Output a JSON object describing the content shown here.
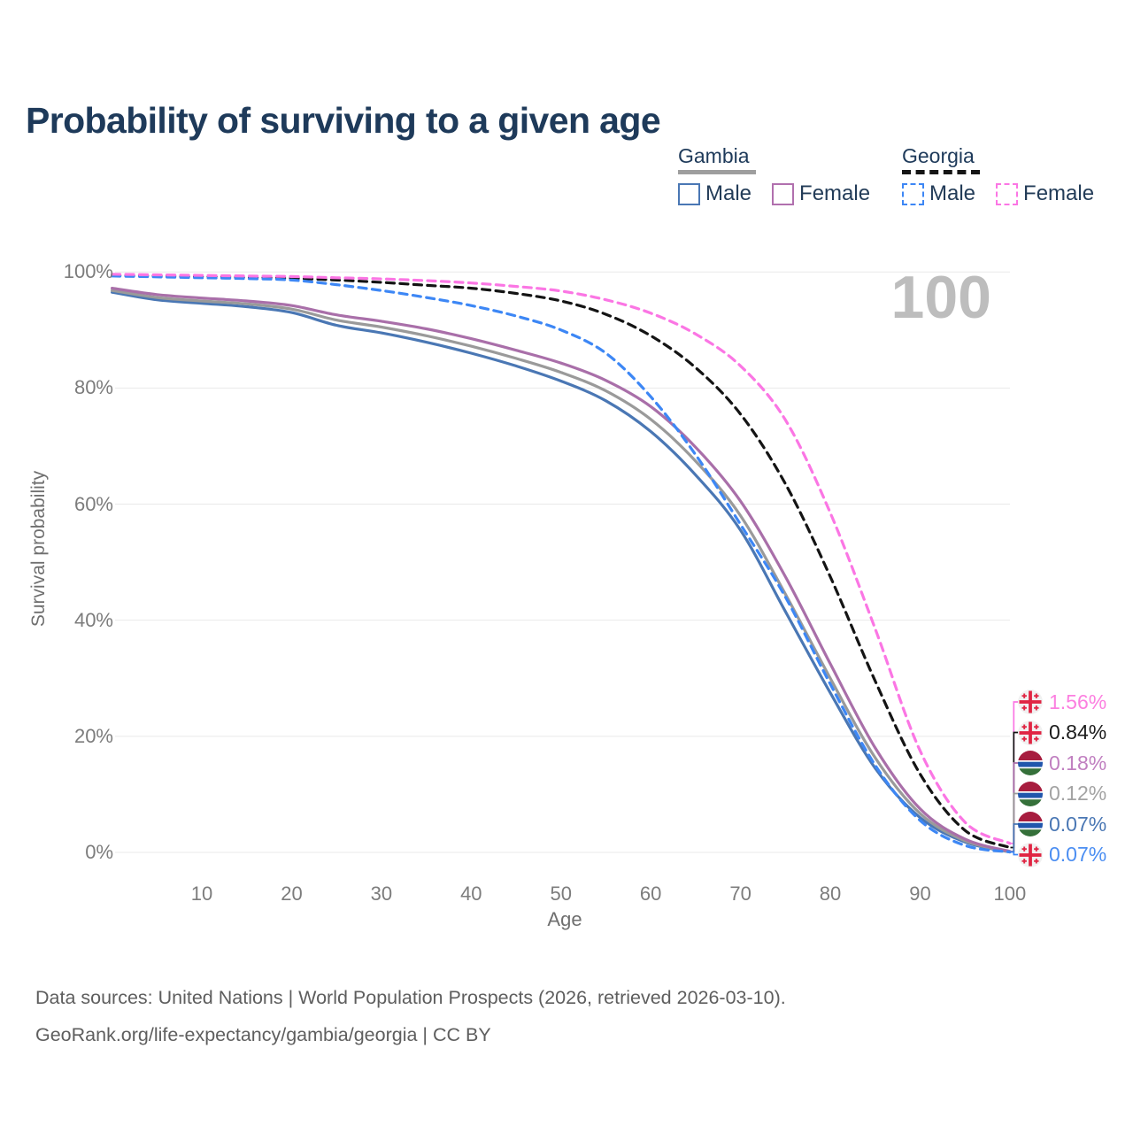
{
  "header": {
    "title": "Probability of surviving to a given age"
  },
  "legend": {
    "groups": [
      {
        "name": "Gambia",
        "underline_style": "solid",
        "underline_color": "#9e9e9e",
        "items": [
          {
            "label": "Male",
            "color": "#4a77b4",
            "dashed": false
          },
          {
            "label": "Female",
            "color": "#b170ae",
            "dashed": false
          }
        ]
      },
      {
        "name": "Georgia",
        "underline_style": "dashed",
        "underline_color": "#151515",
        "items": [
          {
            "label": "Male",
            "color": "#3d87f5",
            "dashed": true
          },
          {
            "label": "Female",
            "color": "#fb76e4",
            "dashed": true
          }
        ]
      }
    ]
  },
  "watermark": "100",
  "axes": {
    "y_title": "Survival probability",
    "x_title": "Age",
    "y_ticks": [
      {
        "label": "0%",
        "percent": 0
      },
      {
        "label": "20%",
        "percent": 20
      },
      {
        "label": "40%",
        "percent": 40
      },
      {
        "label": "60%",
        "percent": 60
      },
      {
        "label": "80%",
        "percent": 80
      },
      {
        "label": "100%",
        "percent": 100
      }
    ],
    "x_ticks": [
      {
        "label": "10",
        "age": 10
      },
      {
        "label": "20",
        "age": 20
      },
      {
        "label": "30",
        "age": 30
      },
      {
        "label": "40",
        "age": 40
      },
      {
        "label": "50",
        "age": 50
      },
      {
        "label": "60",
        "age": 60
      },
      {
        "label": "70",
        "age": 70
      },
      {
        "label": "80",
        "age": 80
      },
      {
        "label": "90",
        "age": 90
      },
      {
        "label": "100",
        "age": 100
      }
    ]
  },
  "end_labels": [
    {
      "flag": "georgia",
      "value": "1.56%",
      "text_color": "#fc7fe0",
      "line_color": "#fb76e4",
      "end_percent": 1.56
    },
    {
      "flag": "georgia",
      "value": "0.84%",
      "text_color": "#1c1c1c",
      "line_color": "#141414",
      "end_percent": 0.84
    },
    {
      "flag": "gambia",
      "value": "0.18%",
      "text_color": "#c07fc0",
      "line_color": "#a96fa9",
      "end_percent": 0.18
    },
    {
      "flag": "gambia",
      "value": "0.12%",
      "text_color": "#a3a3a3",
      "line_color": "#9a9a9a",
      "end_percent": 0.12
    },
    {
      "flag": "gambia",
      "value": "0.07%",
      "text_color": "#4a77b4",
      "line_color": "#4a77b4",
      "end_percent": 0.07
    },
    {
      "flag": "georgia",
      "value": "0.07%",
      "text_color": "#4b8ef2",
      "line_color": "#3d87f5",
      "end_percent": 0.07
    }
  ],
  "footer": {
    "line1": "Data sources: United Nations | World Population Prospects (2026, retrieved 2026-03-10).",
    "line2": "GeoRank.org/life-expectancy/gambia/georgia | CC BY"
  },
  "chart_data": {
    "type": "line",
    "title": "Probability of surviving to a given age",
    "xlabel": "Age",
    "ylabel": "Survival probability",
    "x_range": [
      0,
      100
    ],
    "y_range_percent": [
      0,
      100
    ],
    "grid": "horizontal",
    "legend_position": "top-right",
    "current_age_indicator": 100,
    "x": [
      0,
      5,
      10,
      15,
      20,
      25,
      30,
      35,
      40,
      45,
      50,
      55,
      60,
      65,
      70,
      75,
      80,
      85,
      90,
      95,
      100
    ],
    "series": [
      {
        "name": "Gambia Male",
        "country": "Gambia",
        "sex": "Male",
        "color": "#4a77b4",
        "dash": false,
        "values": [
          96.5,
          95.2,
          94.6,
          94.0,
          93.0,
          90.8,
          89.5,
          87.9,
          86.0,
          83.8,
          81.2,
          77.8,
          72.5,
          65.0,
          55.5,
          41.5,
          27.5,
          14.5,
          6.0,
          1.8,
          0.07
        ]
      },
      {
        "name": "Gambia",
        "country": "Gambia",
        "sex": "Both sexes",
        "color": "#9a9a9a",
        "dash": false,
        "values": [
          96.8,
          95.6,
          95.0,
          94.5,
          93.6,
          91.7,
          90.5,
          89.0,
          87.2,
          85.1,
          82.7,
          79.5,
          74.6,
          67.4,
          58.0,
          44.5,
          30.0,
          16.3,
          6.7,
          2.0,
          0.12
        ]
      },
      {
        "name": "Gambia Female",
        "country": "Gambia",
        "sex": "Female",
        "color": "#a96fa9",
        "dash": false,
        "values": [
          97.2,
          96.1,
          95.5,
          95.0,
          94.2,
          92.6,
          91.5,
          90.2,
          88.5,
          86.5,
          84.3,
          81.3,
          76.8,
          69.8,
          60.5,
          47.5,
          32.5,
          18.0,
          7.5,
          2.3,
          0.18
        ]
      },
      {
        "name": "Georgia",
        "country": "Georgia",
        "sex": "Both sexes",
        "color": "#141414",
        "dash": true,
        "values": [
          99.4,
          99.3,
          99.2,
          99.05,
          98.9,
          98.6,
          98.2,
          97.7,
          97.2,
          96.3,
          95.0,
          92.7,
          89.0,
          83.5,
          75.5,
          63.5,
          47.5,
          29.5,
          13.5,
          3.8,
          0.84
        ]
      },
      {
        "name": "Georgia Male",
        "country": "Georgia",
        "sex": "Male",
        "color": "#3d87f5",
        "dash": true,
        "values": [
          99.3,
          99.15,
          99.0,
          98.85,
          98.6,
          97.8,
          96.8,
          95.6,
          94.2,
          92.4,
          90.0,
          86.0,
          78.5,
          68.5,
          56.5,
          44.0,
          29.0,
          15.0,
          5.5,
          1.2,
          0.07
        ]
      },
      {
        "name": "Georgia Female",
        "country": "Georgia",
        "sex": "Female",
        "color": "#fb76e4",
        "dash": true,
        "values": [
          99.6,
          99.5,
          99.4,
          99.3,
          99.2,
          99.0,
          98.8,
          98.5,
          98.1,
          97.5,
          96.7,
          95.2,
          92.9,
          89.3,
          83.8,
          74.5,
          58.5,
          38.5,
          17.5,
          5.2,
          1.56
        ]
      }
    ],
    "end_values": {
      "Georgia Female": 1.56,
      "Georgia": 0.84,
      "Gambia Female": 0.18,
      "Gambia": 0.12,
      "Gambia Male": 0.07,
      "Georgia Male": 0.07
    }
  }
}
